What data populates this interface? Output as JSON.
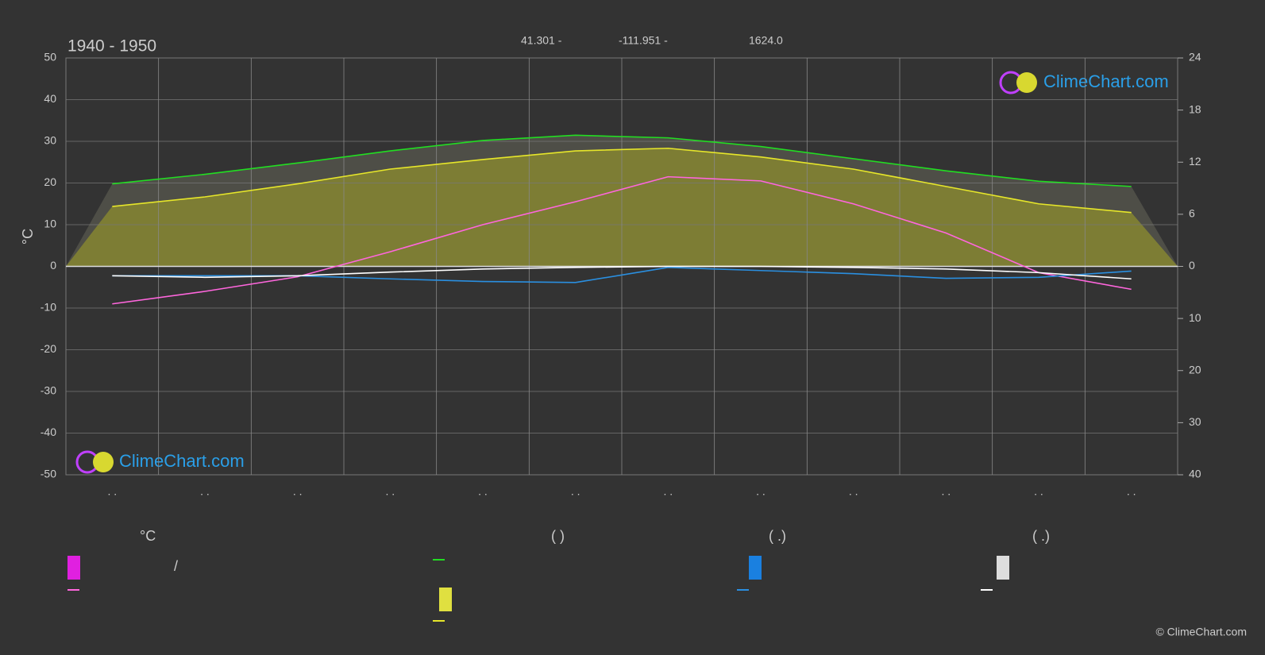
{
  "chart_data": {
    "type": "line",
    "title": "1940 - 1950",
    "location": [
      "41.301 -",
      "-111.951 -",
      "1624.0"
    ],
    "watermark": "ClimeChart.com",
    "copyright": "© ClimeChart.com",
    "y_label": "°C",
    "categories": [
      ". .",
      ". .",
      ". .",
      ". .",
      ". .",
      ". .",
      ". .",
      ". .",
      ". .",
      ". .",
      ". .",
      ". ."
    ],
    "ylim": [
      -50,
      50
    ],
    "yticks": [
      -50,
      -40,
      -30,
      -20,
      -10,
      0,
      10,
      20,
      30,
      40,
      50
    ],
    "y2lim": [
      0,
      24
    ],
    "y2ticks": [
      0,
      6,
      12,
      18,
      24
    ],
    "y3lim": [
      0,
      40
    ],
    "y3ticks": [
      10,
      20,
      30,
      40
    ],
    "grid": true,
    "legend_headers": [
      "°C",
      "(          )",
      "(   .)",
      "(   .)"
    ],
    "legend_note": "/",
    "series": [
      {
        "color": "#22dd22",
        "axis": "y2",
        "values": [
          9.5,
          10.6,
          11.9,
          13.3,
          14.5,
          15.1,
          14.8,
          13.8,
          12.4,
          11.0,
          9.8,
          9.2
        ]
      },
      {
        "color": "#e6e62a",
        "axis": "y2",
        "values": [
          6.9,
          8.0,
          9.5,
          11.2,
          12.3,
          13.3,
          13.6,
          12.6,
          11.2,
          9.2,
          7.2,
          6.2
        ]
      },
      {
        "color": "#ff66dd",
        "axis": "y",
        "values": [
          -9,
          -6,
          -2.5,
          3.5,
          10,
          15.5,
          21.5,
          20.5,
          15,
          8,
          -1.5,
          -5.5
        ]
      },
      {
        "color": "#2a8fe0",
        "axis": "y3",
        "values": [
          1.8,
          1.8,
          1.8,
          2.4,
          2.9,
          3.1,
          0.2,
          0.8,
          1.4,
          2.3,
          2.1,
          0.9
        ]
      },
      {
        "color": "#ffffff",
        "axis": "y3",
        "values": [
          1.8,
          2.1,
          1.8,
          1.1,
          0.5,
          0.2,
          0,
          0,
          0.2,
          0.5,
          1.2,
          2.4
        ]
      }
    ]
  }
}
